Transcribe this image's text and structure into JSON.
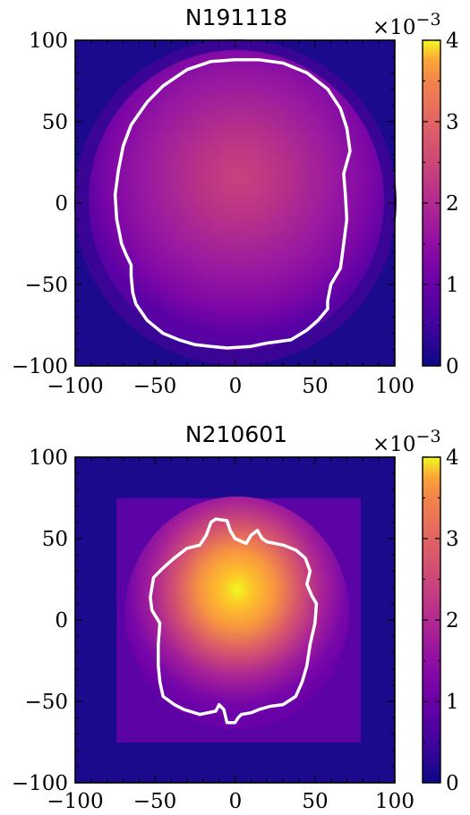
{
  "chart_data": [
    {
      "type": "heatmap",
      "title": "N191118",
      "xlim": [
        -100,
        100
      ],
      "ylim": [
        -100,
        100
      ],
      "xticks": [
        "−100",
        "−50",
        "0",
        "50",
        "100"
      ],
      "yticks": [
        "100",
        "50",
        "0",
        "−50",
        "−100"
      ],
      "colorbar": {
        "range": [
          0,
          4
        ],
        "ticks": [
          "4",
          "3",
          "2",
          "1",
          "0"
        ],
        "multiplier": "×10",
        "exponent": "−3",
        "colormap": "plasma"
      },
      "peak_value": 2.0,
      "background_value": 0.5,
      "contour_color": "#ffffff",
      "contour": [
        [
          0,
          88
        ],
        [
          15,
          88
        ],
        [
          30,
          86
        ],
        [
          45,
          80
        ],
        [
          58,
          70
        ],
        [
          66,
          58
        ],
        [
          70,
          46
        ],
        [
          72,
          32
        ],
        [
          68,
          18
        ],
        [
          69,
          6
        ],
        [
          70,
          -10
        ],
        [
          68,
          -25
        ],
        [
          66,
          -40
        ],
        [
          60,
          -50
        ],
        [
          58,
          -60
        ],
        [
          58,
          -65
        ],
        [
          52,
          -72
        ],
        [
          45,
          -78
        ],
        [
          35,
          -84
        ],
        [
          20,
          -86
        ],
        [
          10,
          -88
        ],
        [
          -5,
          -89
        ],
        [
          -15,
          -88
        ],
        [
          -25,
          -87
        ],
        [
          -35,
          -84
        ],
        [
          -45,
          -80
        ],
        [
          -55,
          -72
        ],
        [
          -62,
          -62
        ],
        [
          -64,
          -55
        ],
        [
          -65,
          -45
        ],
        [
          -65,
          -38
        ],
        [
          -68,
          -32
        ],
        [
          -71,
          -25
        ],
        [
          -74,
          -10
        ],
        [
          -75,
          5
        ],
        [
          -73,
          20
        ],
        [
          -70,
          35
        ],
        [
          -65,
          48
        ],
        [
          -55,
          62
        ],
        [
          -45,
          72
        ],
        [
          -30,
          82
        ],
        [
          -15,
          87
        ]
      ]
    },
    {
      "type": "heatmap",
      "title": "N210601",
      "xlim": [
        -100,
        100
      ],
      "ylim": [
        -100,
        100
      ],
      "xticks": [
        "−100",
        "−50",
        "0",
        "50",
        "100"
      ],
      "yticks": [
        "100",
        "50",
        "0",
        "−50",
        "−100"
      ],
      "colorbar": {
        "range": [
          0,
          4
        ],
        "ticks": [
          "4",
          "3",
          "2",
          "1",
          "0"
        ],
        "multiplier": "×10",
        "exponent": "−3",
        "colormap": "plasma"
      },
      "data_region": [
        -75,
        75
      ],
      "peak_value": 4.0,
      "peak_at": [
        0,
        10
      ],
      "background_value": 0.55,
      "contour_color": "#ffffff",
      "contour": [
        [
          -18,
          52
        ],
        [
          -15,
          60
        ],
        [
          -12,
          62
        ],
        [
          -5,
          61
        ],
        [
          -3,
          55
        ],
        [
          0,
          50
        ],
        [
          7,
          47
        ],
        [
          10,
          52
        ],
        [
          14,
          55
        ],
        [
          17,
          50
        ],
        [
          20,
          48
        ],
        [
          30,
          46
        ],
        [
          38,
          43
        ],
        [
          44,
          38
        ],
        [
          47,
          30
        ],
        [
          45,
          22
        ],
        [
          48,
          15
        ],
        [
          51,
          10
        ],
        [
          50,
          -2
        ],
        [
          47,
          -15
        ],
        [
          45,
          -28
        ],
        [
          42,
          -38
        ],
        [
          38,
          -47
        ],
        [
          30,
          -52
        ],
        [
          22,
          -53
        ],
        [
          15,
          -55
        ],
        [
          10,
          -57
        ],
        [
          4,
          -58
        ],
        [
          2,
          -60
        ],
        [
          0,
          -63
        ],
        [
          -5,
          -63
        ],
        [
          -7,
          -55
        ],
        [
          -10,
          -52
        ],
        [
          -12,
          -56
        ],
        [
          -22,
          -58
        ],
        [
          -32,
          -55
        ],
        [
          -38,
          -52
        ],
        [
          -45,
          -47
        ],
        [
          -47,
          -38
        ],
        [
          -48,
          -28
        ],
        [
          -48,
          -15
        ],
        [
          -47,
          -2
        ],
        [
          -52,
          6
        ],
        [
          -53,
          14
        ],
        [
          -51,
          26
        ],
        [
          -45,
          32
        ],
        [
          -38,
          38
        ],
        [
          -30,
          44
        ],
        [
          -22,
          46
        ]
      ]
    }
  ]
}
